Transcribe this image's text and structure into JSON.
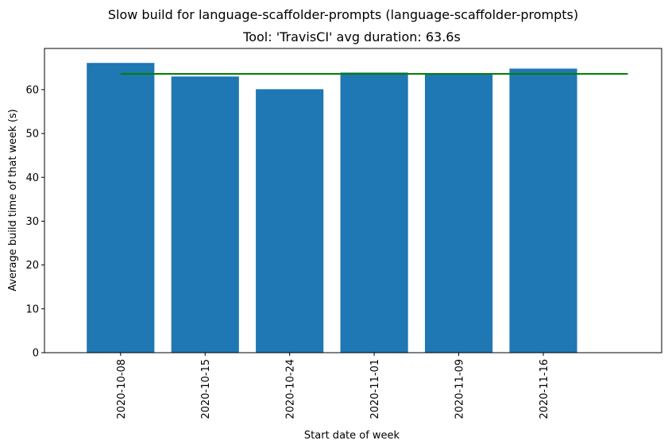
{
  "chart_data": {
    "type": "bar",
    "suptitle": "Slow build for language-scaffolder-prompts (language-scaffolder-prompts)",
    "title": "Tool: 'TravisCI' avg duration: 63.6s",
    "xlabel": "Start date of week",
    "ylabel": "Average build time of that week (s)",
    "categories": [
      "2020-10-08",
      "2020-10-15",
      "2020-10-24",
      "2020-11-01",
      "2020-11-09",
      "2020-11-16"
    ],
    "values": [
      66.1,
      63.0,
      60.1,
      63.9,
      63.6,
      64.8
    ],
    "average_line": {
      "value": 63.6,
      "color": "#008000"
    },
    "ylim": [
      0,
      69.4
    ],
    "yticks": [
      0,
      10,
      20,
      30,
      40,
      50,
      60
    ],
    "bar_color": "#1f77b4",
    "grid": false,
    "legend": "none"
  }
}
